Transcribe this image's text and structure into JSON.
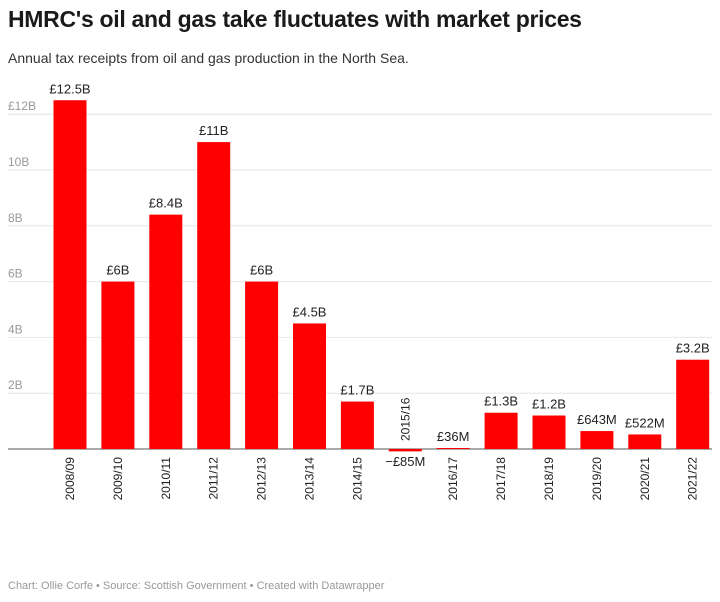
{
  "title": "HMRC's oil and gas take fluctuates with market prices",
  "subtitle": "Annual tax receipts from oil and gas production in the North Sea.",
  "footer": "Chart: Ollie Corfe • Source: Scottish Government • Created with Datawrapper",
  "colors": {
    "bar": "#ff0000",
    "grid": "#e6e6e6",
    "baseline": "#555555"
  },
  "chart_data": {
    "type": "bar",
    "title": "HMRC's oil and gas take fluctuates with market prices",
    "subtitle": "Annual tax receipts from oil and gas production in the North Sea.",
    "xlabel": "",
    "ylabel": "",
    "categories": [
      "2008/09",
      "2009/10",
      "2010/11",
      "2011/12",
      "2012/13",
      "2013/14",
      "2014/15",
      "2015/16",
      "2016/17",
      "2017/18",
      "2018/19",
      "2019/20",
      "2020/21",
      "2021/22"
    ],
    "values": [
      12.5,
      6,
      8.4,
      11,
      6,
      4.5,
      1.7,
      -0.085,
      0.036,
      1.3,
      1.2,
      0.643,
      0.522,
      3.2
    ],
    "data_labels": [
      "£12.5B",
      "£6B",
      "£8.4B",
      "£11B",
      "£6B",
      "£4.5B",
      "£1.7B",
      "−£85M",
      "£36M",
      "£1.3B",
      "£1.2B",
      "£643M",
      "£522M",
      "£3.2B"
    ],
    "yticks": [
      2,
      4,
      6,
      8,
      10,
      12
    ],
    "ytick_labels": [
      "2B",
      "4B",
      "6B",
      "8B",
      "10B",
      "£12B"
    ],
    "ylim": [
      0,
      12.5
    ],
    "grid": true,
    "legend": "none"
  }
}
